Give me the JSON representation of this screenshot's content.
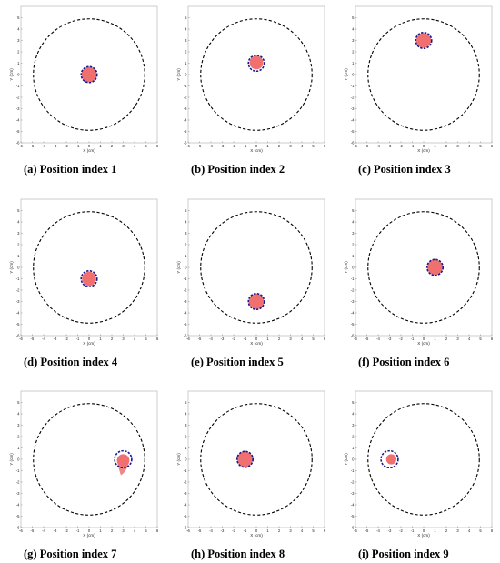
{
  "colors": {
    "region": "#c0c0c0",
    "object_fill": "#f07070",
    "object_outline": "#1a1a8c",
    "boundary": "#000000"
  },
  "chart_data": [
    {
      "type": "scatter",
      "caption": "(a) Position index 1",
      "xlabel": "X (cm)",
      "ylabel": "Y (cm)",
      "xlim": [
        -6,
        6
      ],
      "ylim": [
        -6,
        6
      ],
      "xticks": [
        "-6",
        "-5",
        "-4",
        "-3",
        "-2",
        "-1",
        "0",
        "1",
        "2",
        "3",
        "4",
        "5",
        "6"
      ],
      "yticks": [
        "-6",
        "-5",
        "-4",
        "-3",
        "-2",
        "-1",
        "0",
        "1",
        "2",
        "3",
        "4",
        "5"
      ],
      "boundary": {
        "cx": 0,
        "cy": 0,
        "r": 4.9
      },
      "target": {
        "cx": 0,
        "cy": 0,
        "r": 0.7
      },
      "reconstruction": {
        "cx": 0,
        "cy": 0,
        "r": 0.68,
        "tail": null
      }
    },
    {
      "type": "scatter",
      "caption": "(b) Position index 2",
      "xlabel": "X (cm)",
      "ylabel": "Y (cm)",
      "xlim": [
        -6,
        6
      ],
      "ylim": [
        -6,
        6
      ],
      "xticks": [
        "-6",
        "-5",
        "-4",
        "-3",
        "-2",
        "-1",
        "0",
        "1",
        "2",
        "3",
        "4",
        "5",
        "6"
      ],
      "yticks": [
        "-6",
        "-5",
        "-4",
        "-3",
        "-2",
        "-1",
        "0",
        "1",
        "2",
        "3",
        "4",
        "5"
      ],
      "boundary": {
        "cx": 0,
        "cy": 0,
        "r": 4.9
      },
      "target": {
        "cx": 0,
        "cy": 1,
        "r": 0.7
      },
      "reconstruction": {
        "cx": 0,
        "cy": 1.05,
        "r": 0.6,
        "tail": null
      }
    },
    {
      "type": "scatter",
      "caption": "(c) Position index 3",
      "xlabel": "X (cm)",
      "ylabel": "Y (cm)",
      "xlim": [
        -6,
        6
      ],
      "ylim": [
        -6,
        6
      ],
      "xticks": [
        "-6",
        "-5",
        "-4",
        "-3",
        "-2",
        "-1",
        "0",
        "1",
        "2",
        "3",
        "4",
        "5",
        "6"
      ],
      "yticks": [
        "-6",
        "-5",
        "-4",
        "-3",
        "-2",
        "-1",
        "0",
        "1",
        "2",
        "3",
        "4",
        "5"
      ],
      "boundary": {
        "cx": 0,
        "cy": 0,
        "r": 4.9
      },
      "target": {
        "cx": 0,
        "cy": 3,
        "r": 0.7
      },
      "reconstruction": {
        "cx": 0,
        "cy": 3,
        "r": 0.65,
        "tail": null
      }
    },
    {
      "type": "scatter",
      "caption": "(d) Position index 4",
      "xlabel": "X (cm)",
      "ylabel": "Y (cm)",
      "xlim": [
        -6,
        6
      ],
      "ylim": [
        -6,
        6
      ],
      "xticks": [
        "-6",
        "-5",
        "-4",
        "-3",
        "-2",
        "-1",
        "0",
        "1",
        "2",
        "3",
        "4",
        "5",
        "6"
      ],
      "yticks": [
        "-6",
        "-5",
        "-4",
        "-3",
        "-2",
        "-1",
        "0",
        "1",
        "2",
        "3",
        "4",
        "5"
      ],
      "boundary": {
        "cx": 0,
        "cy": 0,
        "r": 4.9
      },
      "target": {
        "cx": 0,
        "cy": -1,
        "r": 0.7
      },
      "reconstruction": {
        "cx": 0,
        "cy": -1,
        "r": 0.62,
        "tail": null
      }
    },
    {
      "type": "scatter",
      "caption": "(e) Position index 5",
      "xlabel": "X (cm)",
      "ylabel": "Y (cm)",
      "xlim": [
        -6,
        6
      ],
      "ylim": [
        -6,
        6
      ],
      "xticks": [
        "-6",
        "-5",
        "-4",
        "-3",
        "-2",
        "-1",
        "0",
        "1",
        "2",
        "3",
        "4",
        "5",
        "6"
      ],
      "yticks": [
        "-6",
        "-5",
        "-4",
        "-3",
        "-2",
        "-1",
        "0",
        "1",
        "2",
        "3",
        "4",
        "5"
      ],
      "boundary": {
        "cx": 0,
        "cy": 0,
        "r": 4.9
      },
      "target": {
        "cx": 0,
        "cy": -3,
        "r": 0.7
      },
      "reconstruction": {
        "cx": 0,
        "cy": -3,
        "r": 0.68,
        "tail": null
      }
    },
    {
      "type": "scatter",
      "caption": "(f) Position index 6",
      "xlabel": "X (cm)",
      "ylabel": "Y (cm)",
      "xlim": [
        -6,
        6
      ],
      "ylim": [
        -6,
        6
      ],
      "xticks": [
        "-6",
        "-5",
        "-4",
        "-3",
        "-2",
        "-1",
        "0",
        "1",
        "2",
        "3",
        "4",
        "5",
        "6"
      ],
      "yticks": [
        "-6",
        "-5",
        "-4",
        "-3",
        "-2",
        "-1",
        "0",
        "1",
        "2",
        "3",
        "4",
        "5"
      ],
      "boundary": {
        "cx": 0,
        "cy": 0,
        "r": 4.9
      },
      "target": {
        "cx": 1,
        "cy": 0,
        "r": 0.7
      },
      "reconstruction": {
        "cx": 1,
        "cy": 0,
        "r": 0.68,
        "tail": null
      }
    },
    {
      "type": "scatter",
      "caption": "(g) Position index 7",
      "xlabel": "X (cm)",
      "ylabel": "Y (cm)",
      "xlim": [
        -6,
        6
      ],
      "ylim": [
        -6,
        6
      ],
      "xticks": [
        "-6",
        "-5",
        "-4",
        "-3",
        "-2",
        "-1",
        "0",
        "1",
        "2",
        "3",
        "4",
        "5",
        "6"
      ],
      "yticks": [
        "-6",
        "-5",
        "-4",
        "-3",
        "-2",
        "-1",
        "0",
        "1",
        "2",
        "3",
        "4",
        "5"
      ],
      "boundary": {
        "cx": 0,
        "cy": 0,
        "r": 4.9
      },
      "target": {
        "cx": 3,
        "cy": 0,
        "r": 0.75
      },
      "reconstruction": {
        "cx": 3,
        "cy": -0.1,
        "r": 0.55,
        "tail": {
          "x": 2.8,
          "y": -1.4
        }
      }
    },
    {
      "type": "scatter",
      "caption": "(h) Position index 8",
      "xlabel": "X (cm)",
      "ylabel": "Y (cm)",
      "xlim": [
        -6,
        6
      ],
      "ylim": [
        -6,
        6
      ],
      "xticks": [
        "-6",
        "-5",
        "-4",
        "-3",
        "-2",
        "-1",
        "0",
        "1",
        "2",
        "3",
        "4",
        "5",
        "6"
      ],
      "yticks": [
        "-6",
        "-5",
        "-4",
        "-3",
        "-2",
        "-1",
        "0",
        "1",
        "2",
        "3",
        "4",
        "5"
      ],
      "boundary": {
        "cx": 0,
        "cy": 0,
        "r": 4.9
      },
      "target": {
        "cx": -1,
        "cy": 0,
        "r": 0.7
      },
      "reconstruction": {
        "cx": -1,
        "cy": 0,
        "r": 0.68,
        "tail": null
      }
    },
    {
      "type": "scatter",
      "caption": "(i) Position index 9",
      "xlabel": "X (cm)",
      "ylabel": "Y (cm)",
      "xlim": [
        -6,
        6
      ],
      "ylim": [
        -6,
        6
      ],
      "xticks": [
        "-6",
        "-5",
        "-4",
        "-3",
        "-2",
        "-1",
        "0",
        "1",
        "2",
        "3",
        "4",
        "5",
        "6"
      ],
      "yticks": [
        "-6",
        "-5",
        "-4",
        "-3",
        "-2",
        "-1",
        "0",
        "1",
        "2",
        "3",
        "4",
        "5"
      ],
      "boundary": {
        "cx": 0,
        "cy": 0,
        "r": 4.9
      },
      "target": {
        "cx": -3,
        "cy": 0,
        "r": 0.75
      },
      "reconstruction": {
        "cx": -2.85,
        "cy": 0,
        "r": 0.45,
        "tail": null
      }
    }
  ]
}
